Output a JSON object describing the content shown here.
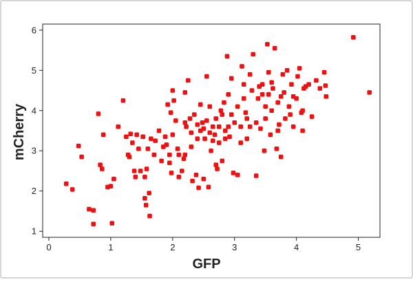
{
  "chart_data": {
    "type": "scatter",
    "title": "",
    "xlabel": "GFP",
    "ylabel": "mCherry",
    "xlim": [
      -0.1,
      5.35
    ],
    "ylim": [
      0.85,
      6.15
    ],
    "xticks": [
      0,
      1,
      2,
      3,
      4,
      5
    ],
    "yticks": [
      1,
      2,
      3,
      4,
      5,
      6
    ],
    "grid": false,
    "legend": "none",
    "marker_color": "#ee1111",
    "points": [
      [
        0.28,
        2.18
      ],
      [
        0.38,
        2.04
      ],
      [
        0.48,
        3.12
      ],
      [
        0.53,
        2.85
      ],
      [
        0.65,
        1.55
      ],
      [
        0.72,
        1.52
      ],
      [
        0.72,
        1.18
      ],
      [
        0.8,
        3.92
      ],
      [
        0.83,
        2.65
      ],
      [
        0.86,
        2.55
      ],
      [
        0.88,
        3.4
      ],
      [
        0.95,
        2.1
      ],
      [
        1.0,
        2.12
      ],
      [
        1.02,
        1.2
      ],
      [
        1.05,
        2.3
      ],
      [
        1.12,
        3.6
      ],
      [
        1.2,
        4.25
      ],
      [
        1.25,
        3.35
      ],
      [
        1.28,
        2.9
      ],
      [
        1.32,
        3.42
      ],
      [
        1.35,
        3.2
      ],
      [
        1.38,
        2.5
      ],
      [
        1.4,
        2.35
      ],
      [
        1.42,
        3.4
      ],
      [
        1.45,
        3.05
      ],
      [
        1.48,
        2.5
      ],
      [
        1.52,
        3.35
      ],
      [
        1.55,
        1.82
      ],
      [
        1.57,
        1.65
      ],
      [
        1.58,
        2.55
      ],
      [
        1.62,
        1.95
      ],
      [
        1.63,
        1.38
      ],
      [
        1.65,
        3.3
      ],
      [
        1.72,
        3.25
      ],
      [
        1.78,
        3.5
      ],
      [
        1.82,
        2.75
      ],
      [
        1.88,
        3.35
      ],
      [
        1.9,
        3.15
      ],
      [
        1.92,
        4.15
      ],
      [
        1.95,
        2.7
      ],
      [
        1.97,
        3.95
      ],
      [
        1.98,
        2.45
      ],
      [
        2.0,
        4.5
      ],
      [
        2.02,
        4.25
      ],
      [
        2.05,
        3.75
      ],
      [
        2.08,
        3.05
      ],
      [
        2.1,
        2.9
      ],
      [
        2.15,
        2.5
      ],
      [
        2.18,
        2.8
      ],
      [
        2.2,
        4.45
      ],
      [
        2.22,
        3.6
      ],
      [
        2.25,
        4.75
      ],
      [
        2.28,
        3.8
      ],
      [
        2.3,
        3.45
      ],
      [
        2.32,
        2.25
      ],
      [
        2.35,
        3.9
      ],
      [
        2.38,
        2.4
      ],
      [
        2.4,
        3.65
      ],
      [
        2.42,
        2.08
      ],
      [
        2.45,
        4.15
      ],
      [
        2.48,
        3.7
      ],
      [
        2.5,
        3.55
      ],
      [
        2.52,
        3.3
      ],
      [
        2.55,
        4.85
      ],
      [
        2.58,
        2.1
      ],
      [
        2.6,
        4.1
      ],
      [
        2.62,
        3.0
      ],
      [
        2.65,
        3.6
      ],
      [
        2.68,
        3.4
      ],
      [
        2.7,
        3.8
      ],
      [
        2.72,
        2.55
      ],
      [
        2.75,
        3.2
      ],
      [
        2.78,
        4.0
      ],
      [
        2.8,
        2.75
      ],
      [
        2.83,
        4.2
      ],
      [
        2.85,
        3.5
      ],
      [
        2.88,
        5.35
      ],
      [
        2.9,
        3.6
      ],
      [
        2.92,
        3.35
      ],
      [
        2.95,
        4.8
      ],
      [
        2.98,
        2.45
      ],
      [
        3.0,
        3.7
      ],
      [
        3.05,
        4.1
      ],
      [
        3.1,
        3.2
      ],
      [
        3.12,
        5.1
      ],
      [
        3.15,
        4.65
      ],
      [
        3.18,
        3.95
      ],
      [
        3.2,
        3.3
      ],
      [
        3.25,
        4.9
      ],
      [
        3.28,
        4.5
      ],
      [
        3.3,
        5.4
      ],
      [
        3.35,
        2.38
      ],
      [
        3.38,
        4.3
      ],
      [
        3.42,
        3.55
      ],
      [
        3.45,
        4.65
      ],
      [
        3.48,
        3.0
      ],
      [
        3.5,
        4.1
      ],
      [
        3.53,
        5.65
      ],
      [
        3.55,
        4.95
      ],
      [
        3.58,
        3.4
      ],
      [
        3.6,
        4.7
      ],
      [
        3.62,
        4.55
      ],
      [
        3.65,
        5.55
      ],
      [
        3.68,
        3.05
      ],
      [
        3.7,
        4.2
      ],
      [
        3.72,
        3.65
      ],
      [
        3.75,
        2.85
      ],
      [
        3.78,
        4.9
      ],
      [
        3.8,
        4.45
      ],
      [
        3.82,
        3.8
      ],
      [
        3.85,
        5.0
      ],
      [
        3.88,
        4.1
      ],
      [
        3.92,
        4.65
      ],
      [
        3.95,
        3.6
      ],
      [
        4.0,
        4.3
      ],
      [
        4.02,
        4.85
      ],
      [
        4.05,
        5.05
      ],
      [
        4.08,
        3.95
      ],
      [
        4.12,
        4.55
      ],
      [
        4.15,
        4.6
      ],
      [
        4.2,
        4.65
      ],
      [
        4.25,
        3.85
      ],
      [
        4.32,
        4.75
      ],
      [
        4.38,
        4.55
      ],
      [
        4.45,
        4.95
      ],
      [
        4.47,
        4.62
      ],
      [
        4.48,
        4.35
      ],
      [
        4.92,
        5.82
      ],
      [
        5.18,
        4.45
      ],
      [
        1.3,
        2.85
      ],
      [
        1.7,
        2.9
      ],
      [
        2.0,
        3.4
      ],
      [
        2.3,
        3.1
      ],
      [
        2.6,
        3.45
      ],
      [
        2.65,
        3.25
      ],
      [
        2.75,
        3.6
      ],
      [
        2.85,
        3.3
      ],
      [
        3.1,
        3.6
      ],
      [
        3.2,
        3.8
      ],
      [
        3.35,
        3.7
      ],
      [
        3.5,
        3.8
      ],
      [
        3.6,
        4.0
      ],
      [
        3.7,
        3.5
      ],
      [
        3.9,
        3.9
      ],
      [
        4.1,
        4.0
      ],
      [
        3.45,
        4.4
      ],
      [
        3.15,
        4.3
      ],
      [
        2.95,
        3.9
      ],
      [
        2.4,
        3.3
      ],
      [
        2.2,
        3.7
      ],
      [
        1.85,
        3.1
      ],
      [
        1.6,
        3.05
      ],
      [
        1.55,
        2.35
      ],
      [
        2.1,
        2.35
      ],
      [
        2.5,
        2.3
      ],
      [
        3.05,
        2.4
      ],
      [
        2.7,
        2.65
      ],
      [
        2.2,
        2.9
      ],
      [
        1.95,
        2.9
      ],
      [
        2.55,
        3.75
      ],
      [
        2.45,
        3.5
      ],
      [
        2.9,
        4.4
      ],
      [
        3.25,
        3.6
      ],
      [
        3.4,
        4.6
      ],
      [
        3.75,
        4.35
      ],
      [
        3.95,
        4.35
      ],
      [
        4.1,
        3.5
      ],
      [
        3.55,
        4.4
      ],
      [
        2.8,
        3.9
      ]
    ]
  }
}
